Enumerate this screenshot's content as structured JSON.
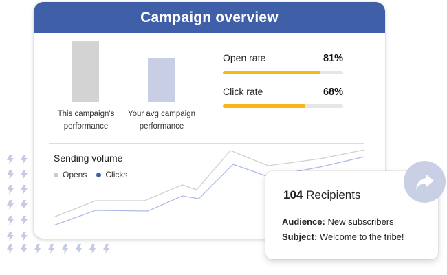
{
  "header": {
    "title": "Campaign overview"
  },
  "comparison": {
    "bars": [
      {
        "label_line1": "This campaign's",
        "label_line2": "performance",
        "color": "#d3d3d3"
      },
      {
        "label_line1": "Your avg campaign",
        "label_line2": "performance",
        "color": "#c8cee4"
      }
    ]
  },
  "rates": [
    {
      "name": "Open rate",
      "value": "81%",
      "percent": 81
    },
    {
      "name": "Click rate",
      "value": "68%",
      "percent": 68
    }
  ],
  "sending_volume": {
    "title": "Sending volume",
    "legend": [
      {
        "label": "Opens",
        "color": "#cccccc"
      },
      {
        "label": "Clicks",
        "color": "#3f5fa9"
      }
    ]
  },
  "info": {
    "recipients_count": "104",
    "recipients_label": "Recipients",
    "audience_label": "Audience:",
    "audience_value": "New subscribers",
    "subject_label": "Subject:",
    "subject_value": "Welcome to the tribe!"
  },
  "share_button": {
    "icon": "share-arrow-icon"
  },
  "colors": {
    "brand_blue": "#3f5fa9",
    "accent_yellow": "#f5b814",
    "bolt": "#c5cbe3"
  },
  "chart_data": [
    {
      "type": "bar",
      "title": "",
      "categories": [
        "This campaign's performance",
        "Your avg campaign performance"
      ],
      "values": [
        100,
        72
      ],
      "xlabel": "",
      "ylabel": ""
    },
    {
      "type": "bar",
      "title": "Rates",
      "categories": [
        "Open rate",
        "Click rate"
      ],
      "values": [
        81,
        68
      ],
      "ylim": [
        0,
        100
      ]
    },
    {
      "type": "line",
      "title": "Sending volume",
      "x": [
        1,
        2,
        3,
        4,
        5,
        6,
        7,
        8,
        9
      ],
      "series": [
        {
          "name": "Opens",
          "values": [
            30,
            42,
            42,
            53,
            50,
            77,
            66,
            71,
            77
          ]
        },
        {
          "name": "Clicks",
          "values": [
            24,
            35,
            35,
            45,
            43,
            67,
            60,
            64,
            71
          ]
        }
      ],
      "xlabel": "",
      "ylabel": "",
      "grid": false
    }
  ]
}
